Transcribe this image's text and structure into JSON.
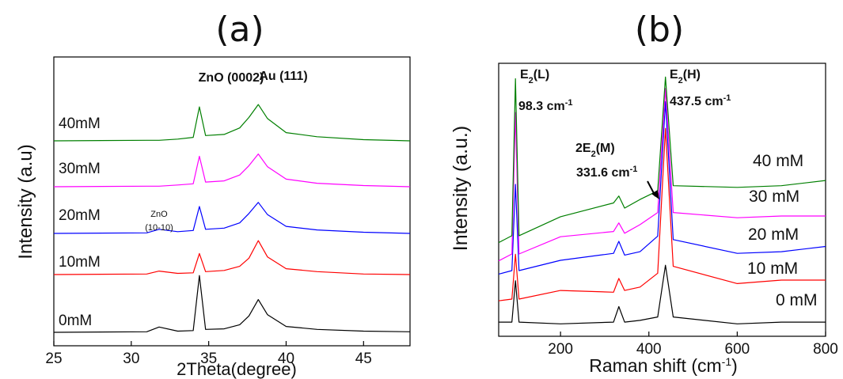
{
  "chart_data": [
    {
      "type": "line",
      "panel": "(a)",
      "xlabel": "2Theta(degree)",
      "ylabel": "Intensity (a.u)",
      "xlim": [
        25,
        48
      ],
      "xticks": [
        25,
        30,
        35,
        40,
        45
      ],
      "grid": false,
      "annotations": [
        {
          "text": "ZnO (0002)",
          "x": 34.4
        },
        {
          "text": "Au (111)",
          "x": 38.2
        },
        {
          "text": "ZnO",
          "x": 31.8
        },
        {
          "text": "(10-10)",
          "x": 31.8
        }
      ],
      "series": [
        {
          "name": "0mM",
          "color": "#000000",
          "x": [
            25,
            31.0,
            31.8,
            33.0,
            34.0,
            34.4,
            34.8,
            36.0,
            37.0,
            37.6,
            38.2,
            38.8,
            40.0,
            42.0,
            45.0,
            48.0
          ],
          "y": [
            0.0,
            0.1,
            0.9,
            0.2,
            0.3,
            9.7,
            0.5,
            0.6,
            1.3,
            2.8,
            5.6,
            3.0,
            1.0,
            0.5,
            0.2,
            0.1
          ]
        },
        {
          "name": "10mM",
          "color": "#ff0000",
          "x": [
            25,
            31.0,
            31.8,
            33.0,
            34.0,
            34.4,
            34.8,
            36.0,
            37.0,
            37.6,
            38.2,
            38.8,
            40.0,
            42.0,
            45.0,
            48.0
          ],
          "y": [
            0.0,
            0.1,
            0.6,
            0.2,
            0.3,
            3.6,
            0.5,
            0.7,
            1.4,
            2.8,
            5.8,
            3.0,
            1.0,
            0.5,
            0.1,
            0.0
          ]
        },
        {
          "name": "20mM",
          "color": "#0000ff",
          "x": [
            25,
            31.0,
            31.8,
            33.0,
            34.0,
            34.4,
            34.8,
            36.0,
            37.0,
            37.6,
            38.2,
            38.8,
            40.0,
            42.0,
            45.0,
            48.0
          ],
          "y": [
            0.0,
            0.1,
            0.7,
            0.3,
            0.5,
            4.6,
            0.7,
            0.9,
            1.8,
            3.4,
            5.3,
            3.2,
            1.2,
            0.6,
            0.2,
            0.0
          ]
        },
        {
          "name": "30mM",
          "color": "#ff00ff",
          "x": [
            25,
            31.0,
            31.8,
            33.0,
            34.0,
            34.4,
            34.8,
            36.0,
            37.0,
            37.6,
            38.2,
            38.8,
            40.0,
            42.0,
            45.0,
            48.0
          ],
          "y": [
            0.0,
            0.1,
            0.1,
            0.3,
            0.5,
            5.2,
            0.8,
            1.0,
            2.0,
            3.6,
            5.6,
            3.4,
            1.3,
            0.6,
            0.2,
            0.0
          ]
        },
        {
          "name": "40mM",
          "color": "#007f00",
          "x": [
            25,
            31.0,
            31.8,
            33.0,
            34.0,
            34.4,
            34.8,
            36.0,
            37.0,
            37.6,
            38.2,
            38.8,
            40.0,
            42.0,
            45.0,
            48.0
          ],
          "y": [
            0.0,
            0.1,
            0.1,
            0.3,
            0.6,
            5.8,
            0.9,
            1.1,
            2.2,
            4.0,
            6.2,
            3.8,
            1.4,
            0.7,
            0.2,
            0.0
          ]
        }
      ]
    },
    {
      "type": "line",
      "panel": "(b)",
      "xlabel": "Raman shift (cm",
      "xlabel_sup": "-1",
      "xlabel_close": ")",
      "ylabel": "Intensity (a.u.)",
      "xlim": [
        60,
        800
      ],
      "xticks": [
        200,
        400,
        600,
        800
      ],
      "grid": false,
      "annotations": [
        {
          "text": "E",
          "sub": "2",
          "rest": "(L)",
          "x": 98.3
        },
        {
          "text": "98.3 cm",
          "sup": "-1",
          "x": 98.3
        },
        {
          "text": "E",
          "sub": "2",
          "rest": "(H)",
          "x": 437.5
        },
        {
          "text": "437.5 cm",
          "sup": "-1",
          "x": 437.5
        },
        {
          "text": "2E",
          "sub": "2",
          "rest": "(M)",
          "x": 331.6
        },
        {
          "text": "331.6 cm",
          "sup": "-1",
          "x": 331.6
        }
      ],
      "series": [
        {
          "name": "0 mM",
          "color": "#000000",
          "x": [
            60,
            90,
            98,
            106,
            200,
            320,
            332,
            345,
            380,
            420,
            437.5,
            455,
            600,
            700,
            800
          ],
          "y": [
            0.5,
            0.5,
            2.9,
            0.5,
            0.4,
            0.5,
            1.4,
            0.5,
            0.6,
            0.8,
            3.8,
            0.8,
            0.4,
            0.5,
            0.5
          ]
        },
        {
          "name": "10 mM",
          "color": "#ff0000",
          "x": [
            60,
            90,
            98,
            106,
            200,
            320,
            332,
            345,
            380,
            420,
            437.5,
            455,
            600,
            700,
            800
          ],
          "y": [
            1.0,
            1.1,
            3.7,
            1.1,
            1.6,
            1.5,
            2.3,
            1.6,
            1.8,
            2.6,
            11.0,
            3.0,
            2.0,
            2.2,
            2.2
          ]
        },
        {
          "name": "20 mM",
          "color": "#0000ff",
          "x": [
            60,
            90,
            98,
            106,
            200,
            320,
            332,
            345,
            380,
            420,
            437.5,
            455,
            600,
            700,
            800
          ],
          "y": [
            2.0,
            2.2,
            7.2,
            2.2,
            2.8,
            3.2,
            3.9,
            3.1,
            3.3,
            4.2,
            12.0,
            4.0,
            3.2,
            3.3,
            3.6
          ]
        },
        {
          "name": "30 mM",
          "color": "#ff00ff",
          "x": [
            60,
            90,
            98,
            106,
            200,
            320,
            332,
            345,
            380,
            420,
            437.5,
            455,
            600,
            700,
            800
          ],
          "y": [
            2.4,
            2.8,
            11.0,
            2.8,
            3.8,
            4.1,
            4.6,
            4.0,
            4.5,
            5.2,
            12.4,
            5.2,
            4.9,
            5.0,
            5.0
          ]
        },
        {
          "name": "40 mM",
          "color": "#007f00",
          "x": [
            60,
            90,
            98,
            106,
            200,
            320,
            332,
            345,
            380,
            420,
            437.5,
            455,
            600,
            700,
            800
          ],
          "y": [
            3.0,
            3.4,
            12.5,
            3.4,
            4.5,
            5.3,
            5.7,
            5.0,
            5.5,
            6.0,
            12.6,
            6.3,
            6.2,
            6.3,
            6.6
          ]
        }
      ]
    }
  ]
}
